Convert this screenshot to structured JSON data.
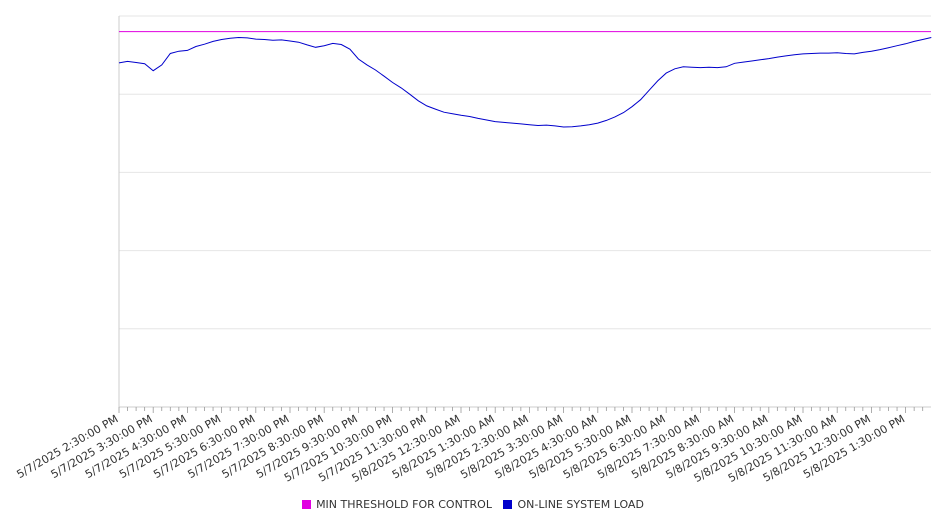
{
  "chart_data": {
    "type": "line",
    "title": "",
    "xlabel": "",
    "ylabel": "",
    "ylim": [
      0,
      100
    ],
    "grid": true,
    "legend_position": "bottom",
    "colors": {
      "threshold": "#e100e1",
      "load": "#0000cc",
      "grid": "#e6e6e6",
      "axis": "#cccccc"
    },
    "x_tick_labels": [
      "5/7/2025 2:30:00 PM",
      "5/7/2025 3:30:00 PM",
      "5/7/2025 4:30:00 PM",
      "5/7/2025 5:30:00 PM",
      "5/7/2025 6:30:00 PM",
      "5/7/2025 7:30:00 PM",
      "5/7/2025 8:30:00 PM",
      "5/7/2025 9:30:00 PM",
      "5/7/2025 10:30:00 PM",
      "5/7/2025 11:30:00 PM",
      "5/8/2025 12:30:00 AM",
      "5/8/2025 1:30:00 AM",
      "5/8/2025 2:30:00 AM",
      "5/8/2025 3:30:00 AM",
      "5/8/2025 4:30:00 AM",
      "5/8/2025 5:30:00 AM",
      "5/8/2025 6:30:00 AM",
      "5/8/2025 7:30:00 AM",
      "5/8/2025 8:30:00 AM",
      "5/8/2025 9:30:00 AM",
      "5/8/2025 10:30:00 AM",
      "5/8/2025 11:30:00 AM",
      "5/8/2025 12:30:00 PM",
      "5/8/2025 1:30:00 PM"
    ],
    "series": [
      {
        "name": "MIN THRESHOLD FOR CONTROL",
        "x": [
          "5/7/2025 2:30:00 PM",
          "5/8/2025 2:15:00 PM"
        ],
        "values": [
          96,
          96
        ]
      },
      {
        "name": "ON-LINE SYSTEM LOAD",
        "x": [
          "5/7/2025 2:30:00 PM",
          "5/7/2025 2:45:00 PM",
          "5/7/2025 3:00:00 PM",
          "5/7/2025 3:15:00 PM",
          "5/7/2025 3:30:00 PM",
          "5/7/2025 3:45:00 PM",
          "5/7/2025 4:00:00 PM",
          "5/7/2025 4:15:00 PM",
          "5/7/2025 4:30:00 PM",
          "5/7/2025 4:45:00 PM",
          "5/7/2025 5:00:00 PM",
          "5/7/2025 5:15:00 PM",
          "5/7/2025 5:30:00 PM",
          "5/7/2025 5:45:00 PM",
          "5/7/2025 6:00:00 PM",
          "5/7/2025 6:15:00 PM",
          "5/7/2025 6:30:00 PM",
          "5/7/2025 6:45:00 PM",
          "5/7/2025 7:00:00 PM",
          "5/7/2025 7:15:00 PM",
          "5/7/2025 7:30:00 PM",
          "5/7/2025 7:45:00 PM",
          "5/7/2025 8:00:00 PM",
          "5/7/2025 8:15:00 PM",
          "5/7/2025 8:30:00 PM",
          "5/7/2025 8:45:00 PM",
          "5/7/2025 9:00:00 PM",
          "5/7/2025 9:15:00 PM",
          "5/7/2025 9:30:00 PM",
          "5/7/2025 9:45:00 PM",
          "5/7/2025 10:00:00 PM",
          "5/7/2025 10:15:00 PM",
          "5/7/2025 10:30:00 PM",
          "5/7/2025 10:45:00 PM",
          "5/7/2025 11:00:00 PM",
          "5/7/2025 11:15:00 PM",
          "5/7/2025 11:30:00 PM",
          "5/7/2025 11:45:00 PM",
          "5/8/2025 12:00:00 AM",
          "5/8/2025 12:15:00 AM",
          "5/8/2025 12:30:00 AM",
          "5/8/2025 12:45:00 AM",
          "5/8/2025 1:00:00 AM",
          "5/8/2025 1:15:00 AM",
          "5/8/2025 1:30:00 AM",
          "5/8/2025 1:45:00 AM",
          "5/8/2025 2:00:00 AM",
          "5/8/2025 2:15:00 AM",
          "5/8/2025 2:30:00 AM",
          "5/8/2025 2:45:00 AM",
          "5/8/2025 3:00:00 AM",
          "5/8/2025 3:15:00 AM",
          "5/8/2025 3:30:00 AM",
          "5/8/2025 3:45:00 AM",
          "5/8/2025 4:00:00 AM",
          "5/8/2025 4:15:00 AM",
          "5/8/2025 4:30:00 AM",
          "5/8/2025 4:45:00 AM",
          "5/8/2025 5:00:00 AM",
          "5/8/2025 5:15:00 AM",
          "5/8/2025 5:30:00 AM",
          "5/8/2025 5:45:00 AM",
          "5/8/2025 6:00:00 AM",
          "5/8/2025 6:15:00 AM",
          "5/8/2025 6:30:00 AM",
          "5/8/2025 6:45:00 AM",
          "5/8/2025 7:00:00 AM",
          "5/8/2025 7:15:00 AM",
          "5/8/2025 7:30:00 AM",
          "5/8/2025 7:45:00 AM",
          "5/8/2025 8:00:00 AM",
          "5/8/2025 8:15:00 AM",
          "5/8/2025 8:30:00 AM",
          "5/8/2025 8:45:00 AM",
          "5/8/2025 9:00:00 AM",
          "5/8/2025 9:15:00 AM",
          "5/8/2025 9:30:00 AM",
          "5/8/2025 9:45:00 AM",
          "5/8/2025 10:00:00 AM",
          "5/8/2025 10:15:00 AM",
          "5/8/2025 10:30:00 AM",
          "5/8/2025 10:45:00 AM",
          "5/8/2025 11:00:00 AM",
          "5/8/2025 11:15:00 AM",
          "5/8/2025 11:30:00 AM",
          "5/8/2025 11:45:00 AM",
          "5/8/2025 12:00:00 PM",
          "5/8/2025 12:15:00 PM",
          "5/8/2025 12:30:00 PM",
          "5/8/2025 12:45:00 PM",
          "5/8/2025 1:00:00 PM",
          "5/8/2025 1:15:00 PM",
          "5/8/2025 1:30:00 PM",
          "5/8/2025 1:45:00 PM",
          "5/8/2025 2:00:00 PM",
          "5/8/2025 2:15:00 PM"
        ],
        "values": [
          88.0,
          88.4,
          88.1,
          87.8,
          86.0,
          87.5,
          90.4,
          91.0,
          91.2,
          92.2,
          92.8,
          93.5,
          94.0,
          94.3,
          94.5,
          94.4,
          94.1,
          94.0,
          93.8,
          93.9,
          93.6,
          93.3,
          92.6,
          92.0,
          92.4,
          93.0,
          92.7,
          91.5,
          89.0,
          87.5,
          86.2,
          84.6,
          83.0,
          81.6,
          80.0,
          78.3,
          77.0,
          76.2,
          75.4,
          75.0,
          74.6,
          74.3,
          73.8,
          73.4,
          73.0,
          72.8,
          72.6,
          72.4,
          72.2,
          72.0,
          72.1,
          71.9,
          71.6,
          71.7,
          71.9,
          72.2,
          72.6,
          73.3,
          74.2,
          75.3,
          76.8,
          78.6,
          81.0,
          83.4,
          85.4,
          86.5,
          87.0,
          86.9,
          86.8,
          86.9,
          86.8,
          87.0,
          87.9,
          88.2,
          88.5,
          88.8,
          89.1,
          89.5,
          89.8,
          90.1,
          90.3,
          90.4,
          90.5,
          90.5,
          90.6,
          90.4,
          90.3,
          90.7,
          91.0,
          91.4,
          91.9,
          92.4,
          92.9,
          93.5,
          94.0,
          94.5
        ]
      }
    ]
  }
}
